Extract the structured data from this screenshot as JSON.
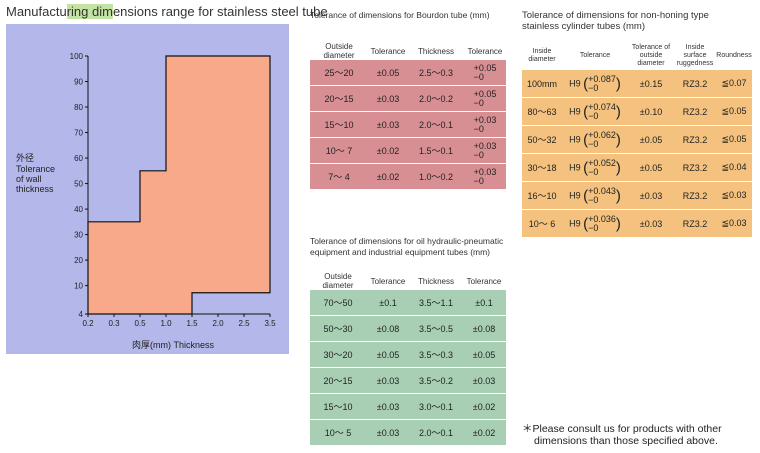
{
  "page": {
    "title_before": "Manufactu",
    "title_highlight": "ring dim",
    "title_after": "ensions range for stainless steel tube"
  },
  "chart": {
    "ylabel_jp": "外径",
    "ylabel_lines": [
      "Tolerance",
      "of wall",
      "thickness"
    ],
    "xlabel": "肉厚(mm)  Thickness"
  },
  "chart_data": {
    "type": "area",
    "title": "Manufacturing dimensions range for stainless steel tube",
    "xlabel": "肉厚(mm)  Thickness",
    "ylabel": "外径 Tolerance of wall thickness",
    "x_ticks": [
      "0.2",
      "0.3",
      "0.5",
      "1.0",
      "1.5",
      "2.0",
      "2.5",
      "3.5"
    ],
    "y_ticks": [
      "4",
      "10",
      "20",
      "30",
      "40",
      "50",
      "60",
      "70",
      "80",
      "90",
      "100"
    ],
    "xlim": [
      0.2,
      3.5
    ],
    "ylim": [
      4,
      100
    ],
    "region_vertices": [
      [
        0.2,
        4
      ],
      [
        0.2,
        35
      ],
      [
        0.5,
        35
      ],
      [
        0.5,
        55
      ],
      [
        1.0,
        55
      ],
      [
        1.0,
        100
      ],
      [
        3.5,
        100
      ],
      [
        3.5,
        8.5
      ],
      [
        1.5,
        8.5
      ],
      [
        1.5,
        4
      ]
    ],
    "fill_color": "#f8a98a",
    "background_color": "#b3b7ea"
  },
  "bourdon": {
    "title": "Tolerance of dimensions for Bourdon tube (mm)",
    "headers": [
      "Outside diameter",
      "Tolerance",
      "Thickness",
      "Tolerance"
    ],
    "rows": [
      {
        "od": "25～20",
        "tol": "±0.05",
        "thk": "2.5～0.3",
        "tp": "+0.05",
        "tm": "−0"
      },
      {
        "od": "20～15",
        "tol": "±0.03",
        "thk": "2.0～0.2",
        "tp": "+0.05",
        "tm": "−0"
      },
      {
        "od": "15～10",
        "tol": "±0.03",
        "thk": "2.0～0.1",
        "tp": "+0.03",
        "tm": "−0"
      },
      {
        "od": "10～ 7",
        "tol": "±0.02",
        "thk": "1.5～0.1",
        "tp": "+0.03",
        "tm": "−0"
      },
      {
        "od": "7～ 4",
        "tol": "±0.02",
        "thk": "1.0～0.2",
        "tp": "+0.03",
        "tm": "−0"
      }
    ]
  },
  "oil": {
    "title_lines": [
      "Tolerance of dimensions for oil hydraulic-pneumatic",
      "equipment and industrial equipment tubes (mm)"
    ],
    "headers": [
      "Outside diameter",
      "Tolerance",
      "Thickness",
      "Tolerance"
    ],
    "rows": [
      {
        "od": "70～50",
        "tol": "±0.1",
        "thk": "3.5～1.1",
        "t2": "±0.1"
      },
      {
        "od": "50～30",
        "tol": "±0.08",
        "thk": "3.5～0.5",
        "t2": "±0.08"
      },
      {
        "od": "30～20",
        "tol": "±0.05",
        "thk": "3.5～0.3",
        "t2": "±0.05"
      },
      {
        "od": "20～15",
        "tol": "±0.03",
        "thk": "3.5～0.2",
        "t2": "±0.03"
      },
      {
        "od": "15～10",
        "tol": "±0.03",
        "thk": "3.0～0.1",
        "t2": "±0.02"
      },
      {
        "od": "10～ 5",
        "tol": "±0.03",
        "thk": "2.0～0.1",
        "t2": "±0.02"
      }
    ]
  },
  "nonhoning": {
    "title_lines": [
      "Tolerance of dimensions for non-honing type",
      "stainless cylinder tubes (mm)"
    ],
    "headers": [
      "Inside diameter",
      "Tolerance",
      "Tolerance of outside diameter",
      "Inside surface ruggedness",
      "Roundness"
    ],
    "rows": [
      {
        "id": "100mm",
        "h": "H9",
        "tp": "+0.087",
        "tm": "−0",
        "od": "±0.15",
        "rz": "RZ3.2",
        "rd": "≦0.07"
      },
      {
        "id": "80～63",
        "h": "H9",
        "tp": "+0.074",
        "tm": "−0",
        "od": "±0.10",
        "rz": "RZ3.2",
        "rd": "≦0.05"
      },
      {
        "id": "50～32",
        "h": "H9",
        "tp": "+0.062",
        "tm": "−0",
        "od": "±0.05",
        "rz": "RZ3.2",
        "rd": "≦0.05"
      },
      {
        "id": "30～18",
        "h": "H9",
        "tp": "+0.052",
        "tm": "−0",
        "od": "±0.05",
        "rz": "RZ3.2",
        "rd": "≦0.04"
      },
      {
        "id": "16～10",
        "h": "H9",
        "tp": "+0.043",
        "tm": "−0",
        "od": "±0.03",
        "rz": "RZ3.2",
        "rd": "≦0.03"
      },
      {
        "id": "10～ 6",
        "h": "H9",
        "tp": "+0.036",
        "tm": "−0",
        "od": "±0.03",
        "rz": "RZ3.2",
        "rd": "≦0.03"
      }
    ]
  },
  "note": {
    "line1": "＊Please consult us for products with other",
    "line2": "dimensions than those specified above."
  }
}
